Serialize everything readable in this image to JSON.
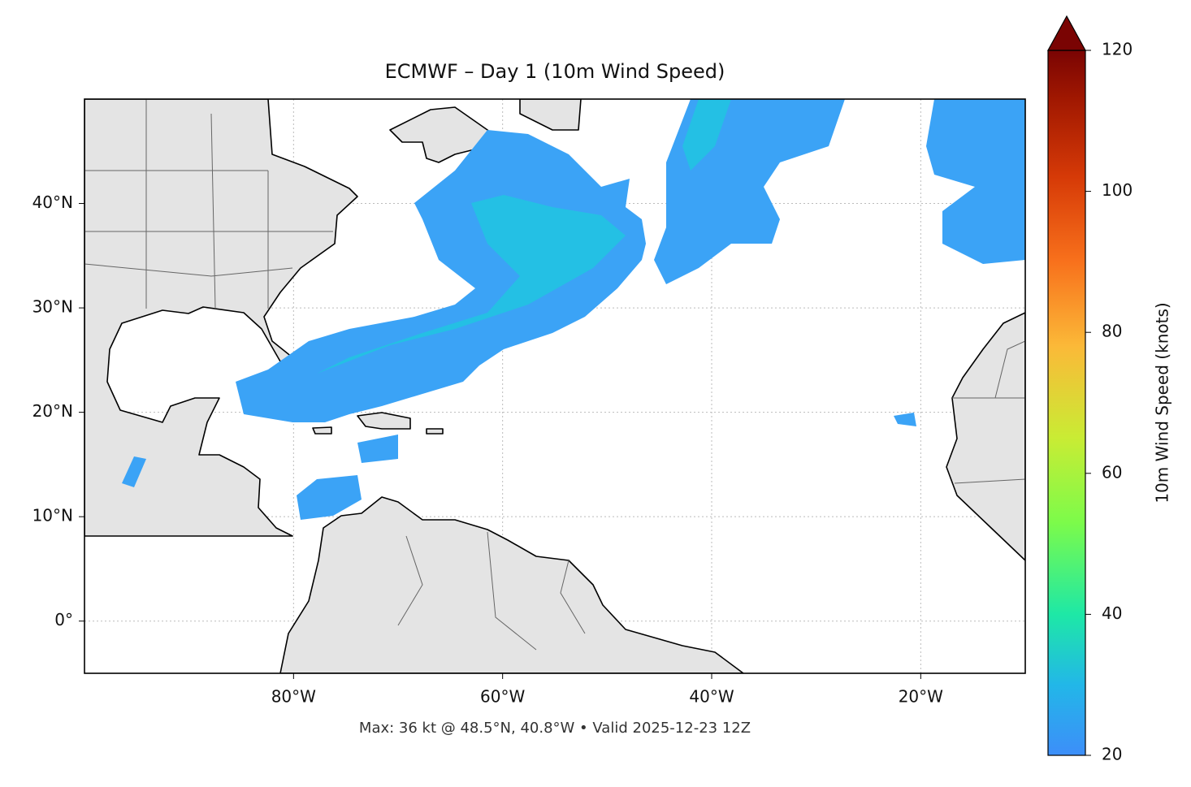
{
  "title": "ECMWF – Day 1 (10m Wind Speed)",
  "footer": "Max: 36 kt @ 48.5°N, 40.8°W • Valid 2025-12-23 12Z",
  "map": {
    "lonlim": [
      -100,
      -10
    ],
    "latlim": [
      -5,
      50
    ],
    "grid": true,
    "lonticks": [
      {
        "value": -80,
        "label": "80°W"
      },
      {
        "value": -60,
        "label": "60°W"
      },
      {
        "value": -40,
        "label": "40°W"
      },
      {
        "value": -20,
        "label": "20°W"
      }
    ],
    "latticks": [
      {
        "value": 0,
        "label": "0°"
      },
      {
        "value": 10,
        "label": "10°N"
      },
      {
        "value": 20,
        "label": "20°N"
      },
      {
        "value": 30,
        "label": "30°N"
      },
      {
        "value": 40,
        "label": "40°N"
      }
    ]
  },
  "colorbar": {
    "label": "10m Wind Speed (knots)",
    "lim": [
      20,
      120
    ],
    "ticks": [
      20,
      40,
      60,
      80,
      100,
      120
    ],
    "extend": "max"
  }
}
